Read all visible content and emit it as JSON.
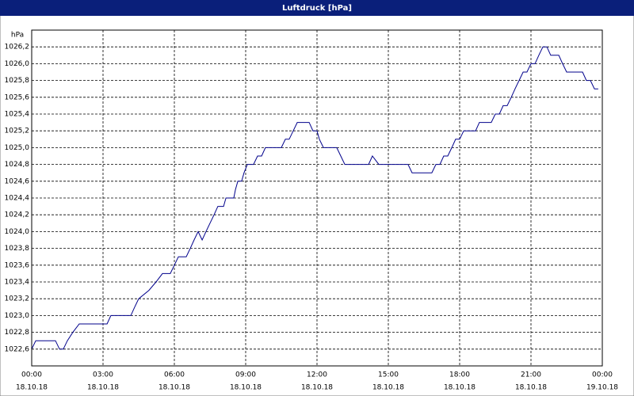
{
  "chart_data": {
    "type": "line",
    "title": "Luftdruck [hPa]",
    "y_unit": "hPa",
    "xlim": [
      0,
      24
    ],
    "ylim": [
      1022.4,
      1026.4
    ],
    "xticks": [
      {
        "value": 0,
        "label": "00:00",
        "date": "18.10.18"
      },
      {
        "value": 3,
        "label": "03:00",
        "date": "18.10.18"
      },
      {
        "value": 6,
        "label": "06:00",
        "date": "18.10.18"
      },
      {
        "value": 9,
        "label": "09:00",
        "date": "18.10.18"
      },
      {
        "value": 12,
        "label": "12:00",
        "date": "18.10.18"
      },
      {
        "value": 15,
        "label": "15:00",
        "date": "18.10.18"
      },
      {
        "value": 18,
        "label": "18:00",
        "date": "18.10.18"
      },
      {
        "value": 21,
        "label": "21:00",
        "date": "18.10.18"
      },
      {
        "value": 24,
        "label": "00:00",
        "date": "19.10.18"
      }
    ],
    "yticks": [
      {
        "value": 1022.6,
        "label": "1022,6"
      },
      {
        "value": 1022.8,
        "label": "1022,8"
      },
      {
        "value": 1023.0,
        "label": "1023,0"
      },
      {
        "value": 1023.2,
        "label": "1023,2"
      },
      {
        "value": 1023.4,
        "label": "1023,4"
      },
      {
        "value": 1023.6,
        "label": "1023,6"
      },
      {
        "value": 1023.8,
        "label": "1023,8"
      },
      {
        "value": 1024.0,
        "label": "1024,0"
      },
      {
        "value": 1024.2,
        "label": "1024,2"
      },
      {
        "value": 1024.4,
        "label": "1024,4"
      },
      {
        "value": 1024.6,
        "label": "1024,6"
      },
      {
        "value": 1024.8,
        "label": "1024,8"
      },
      {
        "value": 1025.0,
        "label": "1025,0"
      },
      {
        "value": 1025.2,
        "label": "1025,2"
      },
      {
        "value": 1025.4,
        "label": "1025,4"
      },
      {
        "value": 1025.6,
        "label": "1025,6"
      },
      {
        "value": 1025.8,
        "label": "1025,8"
      },
      {
        "value": 1026.0,
        "label": "1026,0"
      },
      {
        "value": 1026.2,
        "label": "1026,2"
      }
    ],
    "grid": true,
    "color": "#00008b",
    "x": [
      0,
      0.17,
      1.0,
      1.17,
      1.33,
      1.5,
      1.73,
      2.0,
      3.17,
      3.33,
      4.17,
      4.33,
      4.5,
      4.93,
      5.23,
      5.5,
      5.83,
      6.0,
      6.17,
      6.5,
      6.67,
      6.83,
      7.0,
      7.17,
      7.33,
      7.5,
      7.67,
      7.83,
      8.07,
      8.17,
      8.5,
      8.57,
      8.67,
      8.83,
      8.93,
      9.07,
      9.33,
      9.5,
      9.67,
      9.83,
      10.5,
      10.67,
      10.83,
      11.0,
      11.17,
      11.67,
      11.83,
      12.0,
      12.1,
      12.27,
      12.83,
      13.0,
      13.17,
      14.17,
      14.33,
      14.6,
      15.83,
      16.0,
      16.83,
      17.0,
      17.17,
      17.33,
      17.5,
      17.67,
      17.83,
      18.0,
      18.17,
      18.67,
      18.83,
      19.33,
      19.5,
      19.67,
      19.83,
      20.0,
      20.17,
      20.33,
      20.5,
      20.67,
      20.83,
      21.0,
      21.17,
      21.33,
      21.5,
      21.67,
      21.83,
      22.17,
      22.33,
      22.5,
      23.17,
      23.33,
      23.5,
      23.67,
      23.83
    ],
    "values": [
      1022.6,
      1022.7,
      1022.7,
      1022.6,
      1022.6,
      1022.7,
      1022.8,
      1022.9,
      1022.9,
      1023.0,
      1023.0,
      1023.1,
      1023.2,
      1023.3,
      1023.4,
      1023.5,
      1023.5,
      1023.6,
      1023.7,
      1023.7,
      1023.8,
      1023.9,
      1024.0,
      1023.9,
      1024.0,
      1024.1,
      1024.2,
      1024.3,
      1024.3,
      1024.4,
      1024.4,
      1024.5,
      1024.6,
      1024.6,
      1024.7,
      1024.8,
      1024.8,
      1024.9,
      1024.9,
      1025.0,
      1025.0,
      1025.1,
      1025.1,
      1025.2,
      1025.3,
      1025.3,
      1025.2,
      1025.2,
      1025.1,
      1025.0,
      1025.0,
      1024.9,
      1024.8,
      1024.8,
      1024.9,
      1024.8,
      1024.8,
      1024.7,
      1024.7,
      1024.8,
      1024.8,
      1024.9,
      1024.9,
      1025.0,
      1025.1,
      1025.1,
      1025.2,
      1025.2,
      1025.3,
      1025.3,
      1025.4,
      1025.4,
      1025.5,
      1025.5,
      1025.6,
      1025.7,
      1025.8,
      1025.9,
      1025.9,
      1026.0,
      1026.0,
      1026.1,
      1026.2,
      1026.2,
      1026.1,
      1026.1,
      1026.0,
      1025.9,
      1025.9,
      1025.8,
      1025.8,
      1025.7,
      1025.7
    ]
  }
}
